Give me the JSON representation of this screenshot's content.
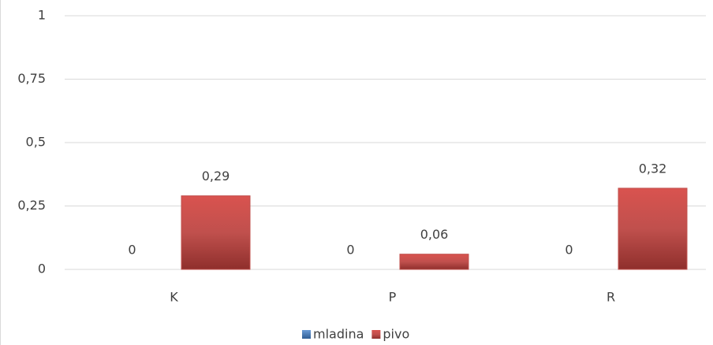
{
  "chart_data": {
    "type": "bar",
    "categories": [
      "K",
      "P",
      "R"
    ],
    "series": [
      {
        "name": "mladina",
        "color": "#4f81bd",
        "values": [
          0,
          0,
          0
        ]
      },
      {
        "name": "pivo",
        "color": "#c0504d",
        "values": [
          0.29,
          0.06,
          0.32
        ],
        "value_labels": [
          "0,29",
          "0,06",
          "0,32"
        ]
      }
    ],
    "ylim": [
      0,
      1
    ],
    "yticks": [
      0,
      {
        "value": 0.25,
        "label": "0,25"
      },
      {
        "value": 0.5,
        "label": "0,5"
      },
      {
        "value": 0.75,
        "label": "0,75"
      },
      1
    ],
    "grid": true,
    "legend": "bottom"
  }
}
